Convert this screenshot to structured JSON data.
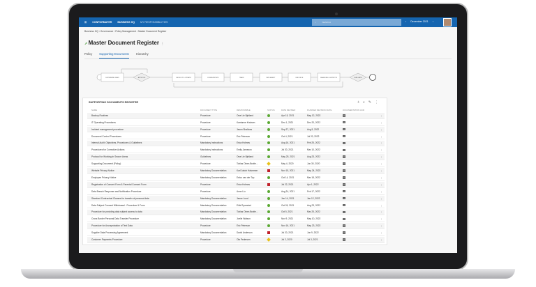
{
  "topbar": {
    "brand": "CONFORMATER",
    "nav": [
      "BUSINESS HQ",
      "MY RESPONSIBILITIES"
    ],
    "search_placeholder": "SEARCH",
    "month": "December 2021",
    "prev": "‹",
    "next": "›"
  },
  "breadcrumb": "Business HQ  ›  Governance  ›  Policy Management  ›  Master Document Register",
  "page_title": "Master Document Register",
  "tabs": [
    {
      "label": "Policy"
    },
    {
      "label": "Supporting Documents",
      "active": true
    },
    {
      "label": "Hierarchy"
    }
  ],
  "process": {
    "steps": [
      "DETERMINE NEED",
      "APPROVE",
      "DEVELOP & UPDATE",
      "COMMUNICATE",
      "TRAIN",
      "IMPLEMENT",
      "ENFORCE",
      "MEASURE & MONITOR",
      "EVALUATE"
    ]
  },
  "colors": {
    "header": "#1565b0",
    "green": "#5aa832",
    "yellow": "#e8c21a",
    "red": "#c0202a"
  },
  "register": {
    "title": "SUPPORTING DOCUMENTS REGISTER",
    "columns": [
      "NAME",
      "DOCUMENT TYPE",
      "RESPONSIBLE",
      "STATUS",
      "DATE REVISED",
      "PLANNED REVISION DATE",
      "DOCUMENTATION LINK"
    ],
    "rows": [
      [
        "Backup Routines",
        "Procedure",
        "Owe Lie Bjelland",
        "green",
        "Apr 15, 2021",
        "May 12, 2022"
      ],
      [
        "IT Operating Procedures",
        "Procedure",
        "Karrianne Knutsen",
        "green",
        "Dec 1, 2021",
        "Dec 20, 2022"
      ],
      [
        "Incident management procedure",
        "Procedure",
        "Jason Shallows",
        "green",
        "Sep 27, 2021",
        "Aug 9, 2022"
      ],
      [
        "Document Control Procedures",
        "Procedure",
        "Eric Peterson",
        "green",
        "Oct 4, 2021",
        "Jul 20, 2022"
      ],
      [
        "Internal Audit: Objectives, Procedures & Guidelines",
        "Mandatory Instructions",
        "Erica Holmes",
        "green",
        "Aug 16, 2021",
        "Feb 25, 2022"
      ],
      [
        "Procedures for Corrective Actions",
        "Mandatory Instructions",
        "Emily Jameson",
        "green",
        "Jul 30, 2021",
        "Mar 10, 2022"
      ],
      [
        "Protocol for Working in Secure Areas",
        "Guidelines",
        "Owe Lie Bjelland",
        "green",
        "May 25, 2021",
        "Aug 23, 2022"
      ],
      [
        "Supporting Document (Policy)",
        "Procedure",
        "Tobias Oines Bratte...",
        "yellow",
        "May 4, 2020",
        "Jun 30, 2020"
      ],
      [
        "Website Privacy Notice",
        "Mandatory Documentation",
        "Karl Jakob Halvorsen",
        "red",
        "Nov 15, 2021",
        "May 24, 2022"
      ],
      [
        "Employee Privacy Notice",
        "Mandatory Documentation",
        "Eelco van der Top",
        "green",
        "Oct 14, 2021",
        "Mar 18, 2022"
      ],
      [
        "Registration of Consent Form & Parental Consent Form",
        "Procedure",
        "Erica Holmes",
        "red",
        "Jul 22, 2021",
        "Apr 1, 2022"
      ],
      [
        "Data Breach Response and Notification Procedure",
        "Procedure",
        "Anne Liu",
        "green",
        "Aug 24, 2021",
        "Feb 17, 2022"
      ],
      [
        "Standard Contractual Clauses for transfer of personal data",
        "Mandatory Documentation",
        "Janne Lund",
        "green",
        "Jun 14, 2021",
        "Jan 12, 2022"
      ],
      [
        "Data Subject Consent Withdrawal - Procedure & Form",
        "Mandatory Documentation",
        "Eirik Rynestad",
        "green",
        "Oct 26, 2021",
        "Aug 23, 2022"
      ],
      [
        "Procedure for providing data subject access to data",
        "Mandatory Documentation",
        "Tobias Oines Bratte...",
        "green",
        "Oct 5, 2021",
        "Mar 25, 2022"
      ],
      [
        "Cross Border Personal Data Transfer Procedure",
        "Mandatory Documentation",
        "Joelle Watson",
        "green",
        "Nov 9, 2021",
        "May 10, 2022"
      ],
      [
        "Procedure for Anonymization of Test Data",
        "Procedure",
        "Eric Peterson",
        "green",
        "Nov 16, 2021",
        "May 23, 2022"
      ],
      [
        "Supplier Data Processing Agreement",
        "Mandatory Documentation",
        "David Anderson",
        "red",
        "Jul 20, 2021",
        "Jun 9, 2022"
      ],
      [
        "Customer Payments Procedure",
        "Procedure",
        "Ola Pedersen",
        "yellow",
        "Jul 2, 2020",
        "Jul 3, 2021"
      ]
    ]
  }
}
